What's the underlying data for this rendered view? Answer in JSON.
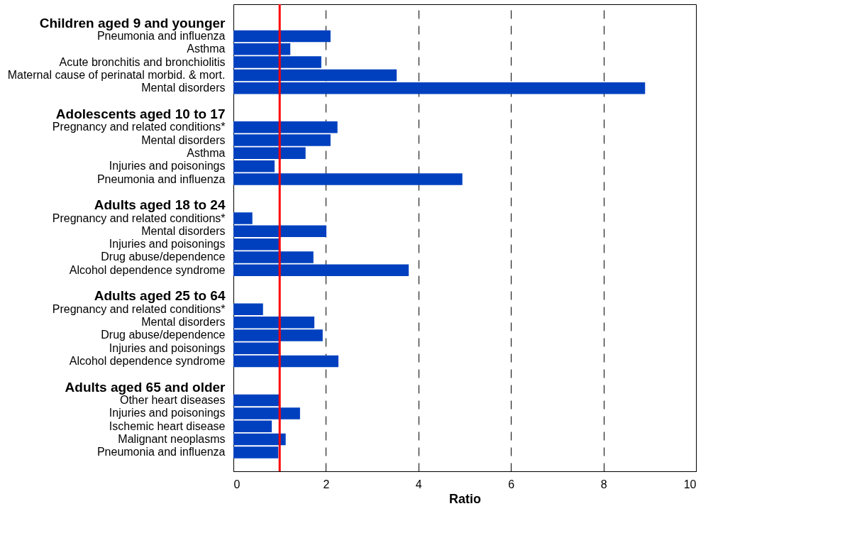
{
  "chart_data": {
    "type": "bar",
    "orientation": "horizontal",
    "xlabel": "Ratio",
    "categories": [
      null,
      "Children aged 9 and younger",
      "Pneumonia and influenza",
      "Asthma",
      "Acute bronchitis and bronchiolitis",
      "Maternal cause of perinatal morbid. & mort.",
      "Mental disorders",
      null,
      "Adolescents aged 10 to 17",
      "Pregnancy and related conditions*",
      "Mental disorders",
      "Asthma",
      "Injuries and poisonings",
      "Pneumonia and influenza",
      null,
      "Adults aged 18 to 24",
      "Pregnancy and related conditions*",
      "Mental disorders",
      "Injuries and poisonings",
      "Drug abuse/dependence",
      "Alcohol dependence syndrome",
      null,
      "Adults aged 25 to 64",
      "Pregnancy and related conditions*",
      "Mental disorders",
      "Drug abuse/dependence",
      "Injuries and poisonings",
      "Alcohol dependence syndrome",
      null,
      "Adults aged 65 and older",
      "Other heart diseases",
      "Injuries and poisonings",
      "Ischemic heart disease",
      "Malignant neoplasms",
      "Pneumonia and influenza",
      null
    ],
    "values": [
      null,
      null,
      2.1,
      1.23,
      1.9,
      3.53,
      8.9,
      null,
      null,
      2.25,
      2.1,
      1.56,
      0.89,
      4.95,
      null,
      null,
      0.41,
      2.01,
      1.0,
      1.73,
      3.79,
      null,
      null,
      0.64,
      1.75,
      1.93,
      1.01,
      2.27,
      null,
      null,
      1.01,
      1.44,
      0.83,
      1.13,
      0.97,
      null
    ],
    "color": "#0040bf",
    "xlim": [
      0,
      10
    ],
    "xticks": [
      0,
      2,
      4,
      6,
      8,
      10
    ],
    "grid": "x",
    "ref_lines": [
      {
        "axis": "x",
        "value": 1,
        "color": "#ff0000"
      }
    ]
  }
}
